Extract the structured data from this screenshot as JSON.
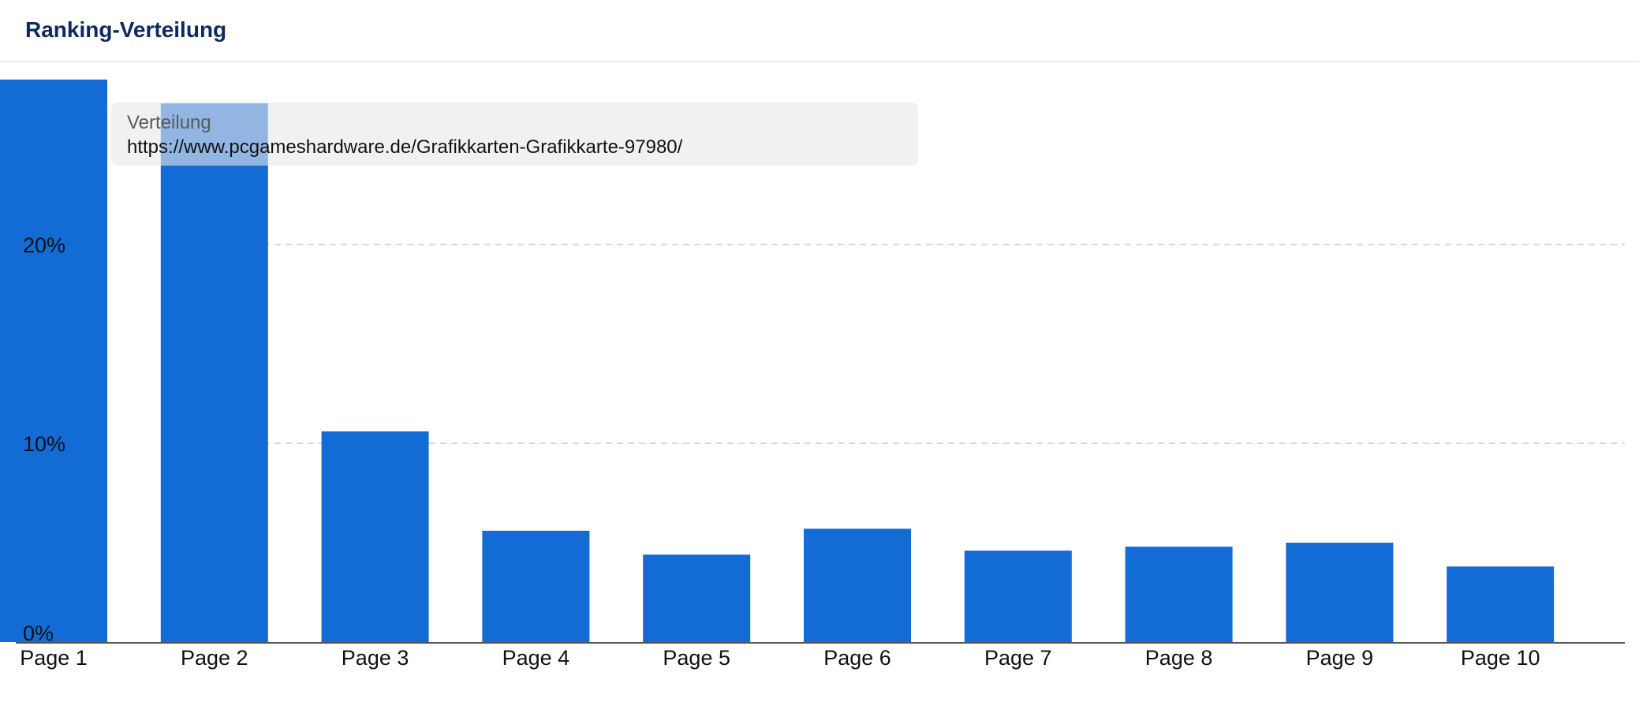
{
  "header": {
    "title": "Ranking-Verteilung"
  },
  "tooltip": {
    "series_name": "Verteilung",
    "value": "https://www.pcgameshardware.de/Grafikkarten-Grafikkarte-97980/"
  },
  "colors": {
    "bar": "#136bd6",
    "title": "#0c2a5c",
    "gridline": "#d5d8dc",
    "axis": "#555555"
  },
  "chart_data": {
    "type": "bar",
    "title": "Ranking-Verteilung",
    "xlabel": "",
    "ylabel": "",
    "categories": [
      "Page 1",
      "Page 2",
      "Page 3",
      "Page 4",
      "Page 5",
      "Page 6",
      "Page 7",
      "Page 8",
      "Page 9",
      "Page 10"
    ],
    "values": [
      28.3,
      27.1,
      10.6,
      5.6,
      4.4,
      5.7,
      4.6,
      4.8,
      5.0,
      3.8
    ],
    "yticks": [
      0,
      10,
      20
    ],
    "ytick_labels": [
      "0%",
      "10%",
      "20%"
    ],
    "ylim": [
      0,
      28.5
    ],
    "grid": true,
    "legend": "none"
  }
}
